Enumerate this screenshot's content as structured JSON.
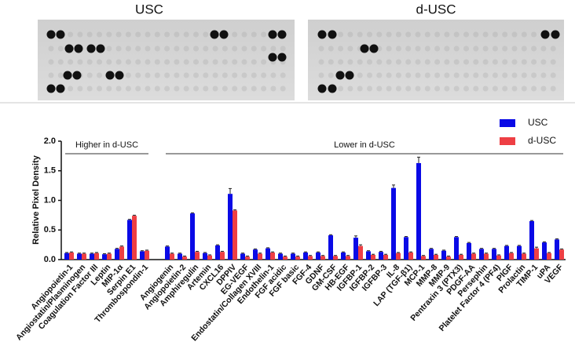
{
  "blot_panels": [
    "USC",
    "d-USC"
  ],
  "chart_data": {
    "type": "bar",
    "ylabel": "Relative Pixel Density",
    "categories": [
      "Angiopoietin-1",
      "Angiostatin/Plasminogen",
      "Coagulation Factor III",
      "Leptin",
      "MIP-1α",
      "Serpin E1",
      "Thrombospondin-1",
      null,
      "Angiogenin",
      "Angiopoietin-2",
      "Amphiregulin",
      "Artemin",
      "CXCL16",
      "DPPIV",
      "EG-VEGF",
      "Endostatin/Collagen XVIII",
      "Endothelin-1",
      "FGF acidic",
      "FGF basic",
      "FGF-4",
      "GDNF",
      "GM-CSF",
      "HB-EGF",
      "IGFBP-1",
      "IGFBP-2",
      "IGFBP-3",
      "IL-8",
      "LAP (TGF-β1)",
      "MCP-1",
      "MMP-8",
      "MMP-9",
      "Pentraxin 3 (PTX3)",
      "PDGF-AA",
      "Persephin",
      "Platelet Factor 4 (PF4)",
      "PlGF",
      "Prolactin",
      "TIMP-1",
      "uPA",
      "VEGF"
    ],
    "series": [
      {
        "name": "USC",
        "color": "#0a0ae6",
        "values": [
          0.11,
          0.1,
          0.1,
          0.09,
          0.18,
          0.67,
          0.14,
          null,
          0.22,
          0.1,
          0.78,
          0.11,
          0.24,
          1.11,
          0.1,
          0.17,
          0.19,
          0.1,
          0.1,
          0.12,
          0.12,
          0.41,
          0.12,
          0.37,
          0.14,
          0.13,
          1.21,
          0.38,
          1.63,
          0.18,
          0.15,
          0.38,
          0.28,
          0.18,
          0.18,
          0.23,
          0.23,
          0.65,
          0.29,
          0.34
        ],
        "errors": [
          0.01,
          0.01,
          0.01,
          0.01,
          0.01,
          0.01,
          0.01,
          null,
          0.01,
          0.01,
          0.01,
          0.01,
          0.01,
          0.09,
          0.01,
          0.01,
          0.01,
          0.01,
          0.01,
          0.01,
          0.01,
          0.01,
          0.01,
          0.03,
          0.01,
          0.01,
          0.05,
          0.01,
          0.1,
          0.01,
          0.01,
          0.01,
          0.01,
          0.01,
          0.01,
          0.01,
          0.01,
          0.01,
          0.01,
          0.01
        ]
      },
      {
        "name": "d-USC",
        "color": "#ee3f44",
        "values": [
          0.12,
          0.1,
          0.11,
          0.1,
          0.22,
          0.74,
          0.15,
          null,
          0.1,
          0.05,
          0.13,
          0.07,
          0.13,
          0.83,
          0.05,
          0.1,
          0.12,
          0.05,
          0.05,
          0.06,
          0.06,
          0.06,
          0.06,
          0.23,
          0.08,
          0.08,
          0.11,
          0.12,
          0.06,
          0.08,
          0.05,
          0.08,
          0.1,
          0.1,
          0.07,
          0.11,
          0.1,
          0.19,
          0.11,
          0.17
        ],
        "errors": [
          0.01,
          0.01,
          0.01,
          0.01,
          0.01,
          0.01,
          0.01,
          null,
          0.01,
          0.01,
          0.01,
          0.01,
          0.01,
          0.01,
          0.01,
          0.01,
          0.01,
          0.01,
          0.01,
          0.01,
          0.01,
          0.01,
          0.01,
          0.02,
          0.01,
          0.01,
          0.01,
          0.01,
          0.01,
          0.01,
          0.01,
          0.01,
          0.01,
          0.01,
          0.01,
          0.01,
          0.01,
          0.02,
          0.01,
          0.01
        ]
      }
    ],
    "annotations": [
      "Higher in d-USC",
      "Lower in d-USC"
    ],
    "ylim": [
      0,
      2.0
    ],
    "yticks": [
      {
        "value": 0,
        "label": "0.0"
      },
      {
        "value": 0.5,
        "label": "0.5"
      },
      {
        "value": 1.0,
        "label": "1.0"
      },
      {
        "value": 1.5,
        "label": "1.5"
      },
      {
        "value": 2.0,
        "label": "2.0"
      }
    ],
    "legend": "upper right"
  }
}
